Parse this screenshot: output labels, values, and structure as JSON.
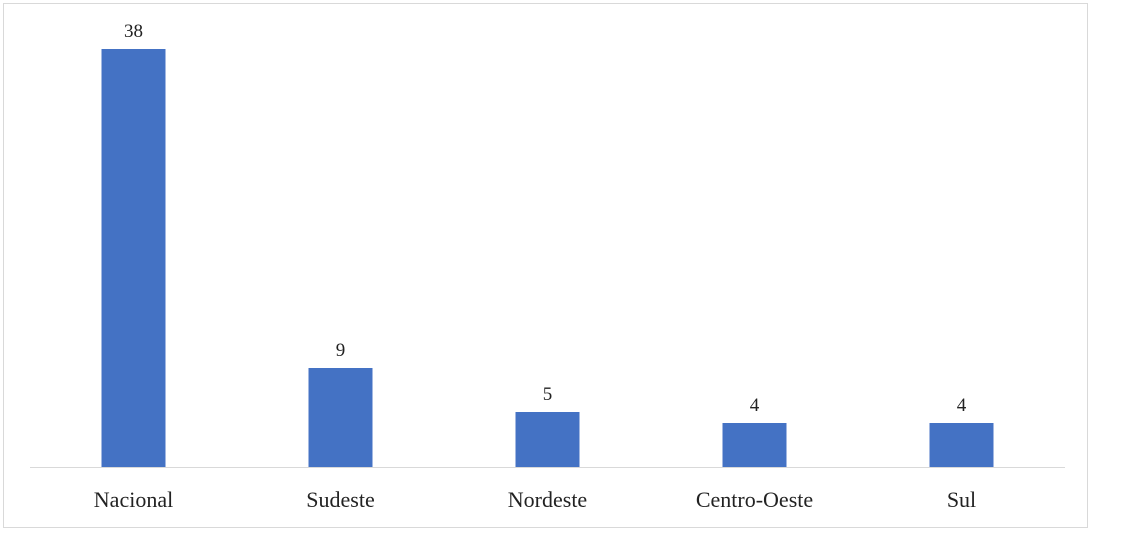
{
  "chart_data": {
    "type": "bar",
    "title": "",
    "xlabel": "",
    "ylabel": "",
    "categories": [
      "Nacional",
      "Sudeste",
      "Nordeste",
      "Centro-Oeste",
      "Sul"
    ],
    "values": [
      38,
      9,
      5,
      4,
      4
    ],
    "data_labels": [
      "38",
      "9",
      "5",
      "4",
      "4"
    ],
    "ylim": [
      0,
      38
    ],
    "grid": false,
    "legend": "none",
    "bar_color": "#4472C4",
    "axis_color": "#d9d9d9"
  }
}
